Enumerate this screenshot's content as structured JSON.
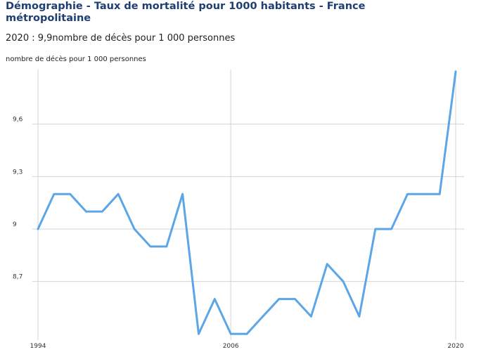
{
  "header": {
    "title": "Démographie - Taux de mortalité pour 1000 habitants - France métropolitaine",
    "subtitle": "2020 : 9,9nombre de décès pour 1 000 personnes",
    "unit": "nombre de décès pour 1 000 personnes"
  },
  "chart_data": {
    "type": "line",
    "title": "Démographie - Taux de mortalité pour 1000 habitants - France métropolitaine",
    "subtitle": "2020 : 9,9nombre de décès pour 1 000 personnes",
    "xlabel": "",
    "ylabel": "nombre de décès pour 1 000 personnes",
    "x": [
      1994,
      1995,
      1996,
      1997,
      1998,
      1999,
      2000,
      2001,
      2002,
      2003,
      2004,
      2005,
      2006,
      2007,
      2008,
      2009,
      2010,
      2011,
      2012,
      2013,
      2014,
      2015,
      2016,
      2017,
      2018,
      2019,
      2020
    ],
    "series": [
      {
        "name": "",
        "values": [
          9.0,
          9.2,
          9.2,
          9.1,
          9.1,
          9.2,
          9.0,
          8.9,
          8.9,
          9.2,
          8.4,
          8.6,
          8.4,
          8.4,
          8.5,
          8.6,
          8.6,
          8.5,
          8.8,
          8.7,
          8.5,
          9.0,
          9.0,
          9.2,
          9.2,
          9.2,
          9.9
        ]
      }
    ],
    "x_ticks": [
      1994,
      2006,
      2020
    ],
    "x_tick_labels": [
      "1994",
      "2006",
      "2020"
    ],
    "y_ticks": [
      8.7,
      9,
      9.3,
      9.6
    ],
    "y_tick_labels": [
      "8,7",
      "9",
      "9,3",
      "9,6"
    ],
    "xlim": [
      1994,
      2020
    ],
    "ylim": [
      8.4,
      9.9
    ],
    "grid": true,
    "legend": "none",
    "colors": {
      "line": "#5aa6e6",
      "grid": "#d4d4d4",
      "title": "#1f3f73"
    }
  }
}
